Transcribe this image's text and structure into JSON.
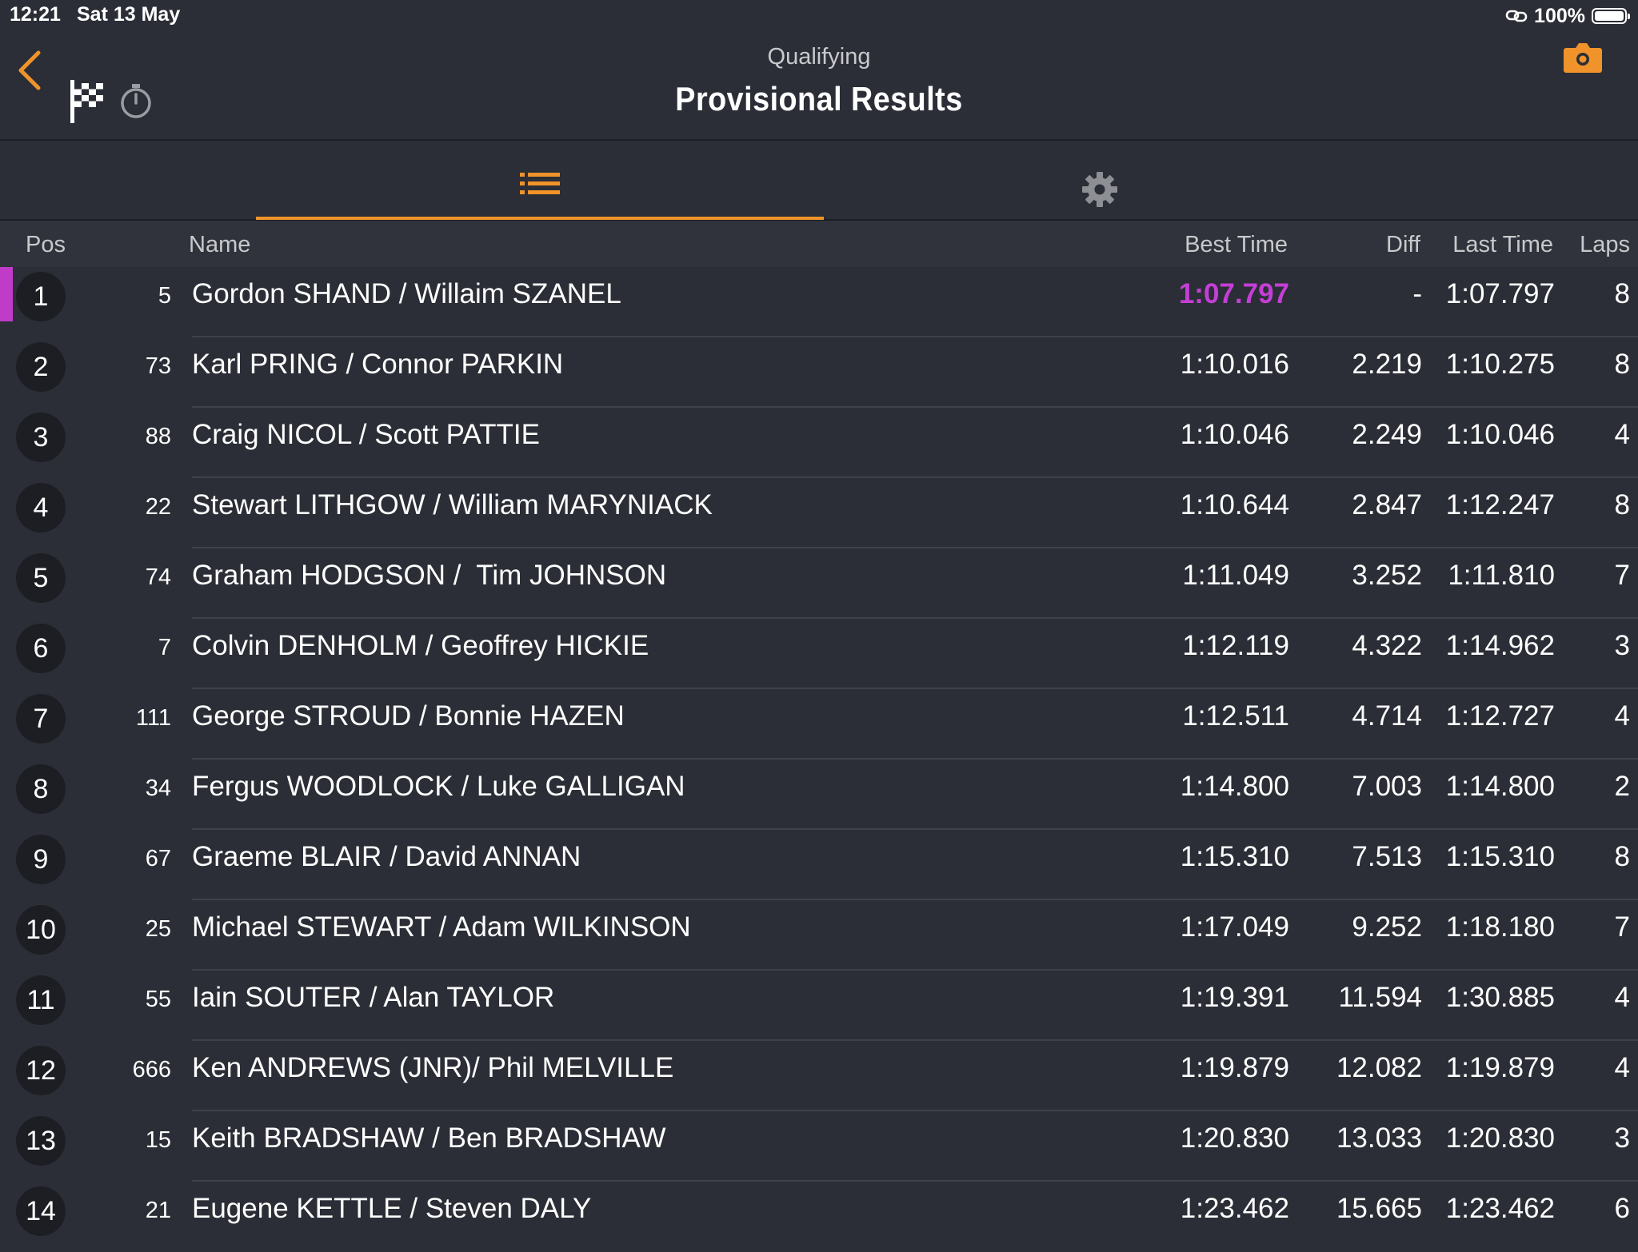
{
  "statusbar": {
    "time": "12:21",
    "date": "Sat 13 May",
    "battery": "100%"
  },
  "header": {
    "subtitle": "Qualifying",
    "title": "Provisional Results"
  },
  "icons": {
    "back": "chevron-left-icon",
    "flag": "checkered-flag-icon",
    "timer": "stopwatch-icon",
    "camera": "camera-icon",
    "list": "list-icon",
    "settings": "gear-icon",
    "link": "link-icon"
  },
  "colors": {
    "accent": "#f0932b",
    "fastest": "#c43fd6",
    "background": "#2b2e36"
  },
  "columns": {
    "pos": "Pos",
    "name": "Name",
    "best": "Best Time",
    "diff": "Diff",
    "last": "Last Time",
    "laps": "Laps"
  },
  "rows": [
    {
      "pos": "1",
      "num": "5",
      "name": "Gordon SHAND / Willaim SZANEL",
      "best": "1:07.797",
      "diff": "-",
      "last": "1:07.797",
      "laps": "8"
    },
    {
      "pos": "2",
      "num": "73",
      "name": "Karl PRING / Connor PARKIN",
      "best": "1:10.016",
      "diff": "2.219",
      "last": "1:10.275",
      "laps": "8"
    },
    {
      "pos": "3",
      "num": "88",
      "name": "Craig NICOL / Scott PATTIE",
      "best": "1:10.046",
      "diff": "2.249",
      "last": "1:10.046",
      "laps": "4"
    },
    {
      "pos": "4",
      "num": "22",
      "name": "Stewart LITHGOW / William MARYNIACK",
      "best": "1:10.644",
      "diff": "2.847",
      "last": "1:12.247",
      "laps": "8"
    },
    {
      "pos": "5",
      "num": "74",
      "name": "Graham HODGSON /  Tim JOHNSON",
      "best": "1:11.049",
      "diff": "3.252",
      "last": "1:11.810",
      "laps": "7"
    },
    {
      "pos": "6",
      "num": "7",
      "name": "Colvin DENHOLM / Geoffrey HICKIE",
      "best": "1:12.119",
      "diff": "4.322",
      "last": "1:14.962",
      "laps": "3"
    },
    {
      "pos": "7",
      "num": "111",
      "name": "George STROUD / Bonnie HAZEN",
      "best": "1:12.511",
      "diff": "4.714",
      "last": "1:12.727",
      "laps": "4"
    },
    {
      "pos": "8",
      "num": "34",
      "name": "Fergus WOODLOCK / Luke GALLIGAN",
      "best": "1:14.800",
      "diff": "7.003",
      "last": "1:14.800",
      "laps": "2"
    },
    {
      "pos": "9",
      "num": "67",
      "name": "Graeme BLAIR / David ANNAN",
      "best": "1:15.310",
      "diff": "7.513",
      "last": "1:15.310",
      "laps": "8"
    },
    {
      "pos": "10",
      "num": "25",
      "name": "Michael STEWART / Adam WILKINSON",
      "best": "1:17.049",
      "diff": "9.252",
      "last": "1:18.180",
      "laps": "7"
    },
    {
      "pos": "11",
      "num": "55",
      "name": "Iain SOUTER / Alan TAYLOR",
      "best": "1:19.391",
      "diff": "11.594",
      "last": "1:30.885",
      "laps": "4"
    },
    {
      "pos": "12",
      "num": "666",
      "name": "Ken ANDREWS (JNR)/ Phil MELVILLE",
      "best": "1:19.879",
      "diff": "12.082",
      "last": "1:19.879",
      "laps": "4"
    },
    {
      "pos": "13",
      "num": "15",
      "name": "Keith BRADSHAW / Ben BRADSHAW",
      "best": "1:20.830",
      "diff": "13.033",
      "last": "1:20.830",
      "laps": "3"
    },
    {
      "pos": "14",
      "num": "21",
      "name": "Eugene KETTLE / Steven DALY",
      "best": "1:23.462",
      "diff": "15.665",
      "last": "1:23.462",
      "laps": "6"
    }
  ]
}
